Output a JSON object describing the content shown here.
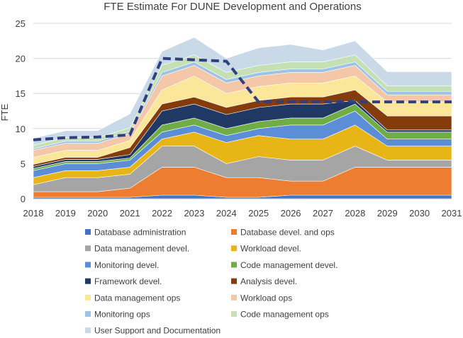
{
  "chart_data": {
    "type": "area",
    "title": "FTE Estimate For DUNE Development and Operations",
    "xlabel": "",
    "ylabel": "FTE",
    "ylim": [
      0,
      25
    ],
    "yticks": [
      0,
      5,
      10,
      15,
      20,
      25
    ],
    "grid": true,
    "legend_position": "bottom",
    "categories": [
      "2018",
      "2019",
      "2020",
      "2021",
      "2022",
      "2023",
      "2024",
      "2025",
      "2026",
      "2027",
      "2028",
      "2029",
      "2030",
      "2031"
    ],
    "series": [
      {
        "name": "Database administration",
        "color": "#4472C4",
        "values": [
          0.2,
          0.2,
          0.2,
          0.2,
          0.5,
          0.5,
          0.2,
          0.2,
          0.5,
          0.5,
          0.5,
          0.5,
          0.5,
          0.5
        ]
      },
      {
        "name": "Database devel. and ops",
        "color": "#ED7D31",
        "values": [
          0.8,
          0.8,
          0.8,
          1.3,
          4.0,
          4.0,
          2.8,
          2.8,
          2.0,
          2.0,
          4.0,
          4.0,
          4.0,
          4.0
        ]
      },
      {
        "name": "Data management devel.",
        "color": "#A5A5A5",
        "values": [
          1.0,
          2.0,
          2.0,
          2.0,
          3.0,
          3.0,
          2.0,
          3.0,
          3.0,
          3.0,
          3.0,
          1.0,
          1.0,
          1.0
        ]
      },
      {
        "name": "Workload devel.",
        "color": "#E8B516",
        "values": [
          1.0,
          1.0,
          1.0,
          1.0,
          1.0,
          2.0,
          3.0,
          3.0,
          3.0,
          3.0,
          3.0,
          2.0,
          2.0,
          2.0
        ]
      },
      {
        "name": "Monitoring devel.",
        "color": "#5B8ED6",
        "values": [
          1.0,
          1.0,
          1.0,
          1.0,
          1.0,
          1.0,
          1.0,
          1.0,
          2.0,
          2.0,
          2.0,
          1.0,
          1.0,
          1.0
        ]
      },
      {
        "name": "Code management devel.",
        "color": "#70AD47",
        "values": [
          0.3,
          0.3,
          0.3,
          0.3,
          1.0,
          1.0,
          1.0,
          1.0,
          1.0,
          1.0,
          1.0,
          1.0,
          1.0,
          1.0
        ]
      },
      {
        "name": "Framework devel.",
        "color": "#203864",
        "values": [
          0.3,
          0.3,
          0.3,
          0.5,
          2.0,
          2.0,
          2.0,
          2.0,
          2.0,
          2.0,
          0.5,
          0.3,
          0.3,
          0.3
        ]
      },
      {
        "name": "Analysis devel.",
        "color": "#843C0C",
        "values": [
          0.3,
          0.3,
          0.3,
          1.0,
          1.0,
          1.0,
          1.0,
          1.0,
          1.0,
          1.0,
          1.5,
          2.0,
          2.0,
          2.0
        ]
      },
      {
        "name": "Data management ops",
        "color": "#FBE69A",
        "values": [
          1.0,
          1.0,
          1.0,
          1.0,
          2.0,
          3.0,
          2.0,
          2.0,
          2.0,
          2.0,
          2.0,
          2.0,
          2.0,
          2.0
        ]
      },
      {
        "name": "Workload ops",
        "color": "#F4C7A8",
        "values": [
          1.0,
          1.0,
          1.0,
          1.0,
          2.0,
          1.5,
          1.5,
          1.5,
          1.5,
          1.5,
          1.5,
          1.0,
          1.0,
          1.0
        ]
      },
      {
        "name": "Monitoring ops",
        "color": "#9DC3E6",
        "values": [
          0.2,
          0.3,
          0.3,
          0.3,
          0.5,
          0.5,
          0.5,
          0.5,
          0.5,
          0.5,
          0.5,
          0.5,
          0.5,
          0.5
        ]
      },
      {
        "name": "Code management ops",
        "color": "#C5E0B4",
        "values": [
          0.5,
          0.5,
          0.5,
          0.5,
          1.0,
          1.0,
          1.0,
          1.0,
          1.0,
          1.0,
          1.0,
          0.8,
          0.8,
          0.8
        ]
      },
      {
        "name": "User Support and Documentation",
        "color": "#C9D9E8",
        "values": [
          1.0,
          1.0,
          1.0,
          2.0,
          2.0,
          2.5,
          2.0,
          2.5,
          2.5,
          1.7,
          2.0,
          2.0,
          2.0,
          2.0
        ]
      }
    ],
    "overlay_line": {
      "color": "#2F3F7F",
      "style": "dashed",
      "values": [
        8.4,
        8.7,
        8.8,
        9.1,
        20.0,
        19.8,
        19.6,
        13.8,
        13.8,
        13.8,
        13.8,
        13.8,
        13.8,
        13.8
      ]
    }
  }
}
